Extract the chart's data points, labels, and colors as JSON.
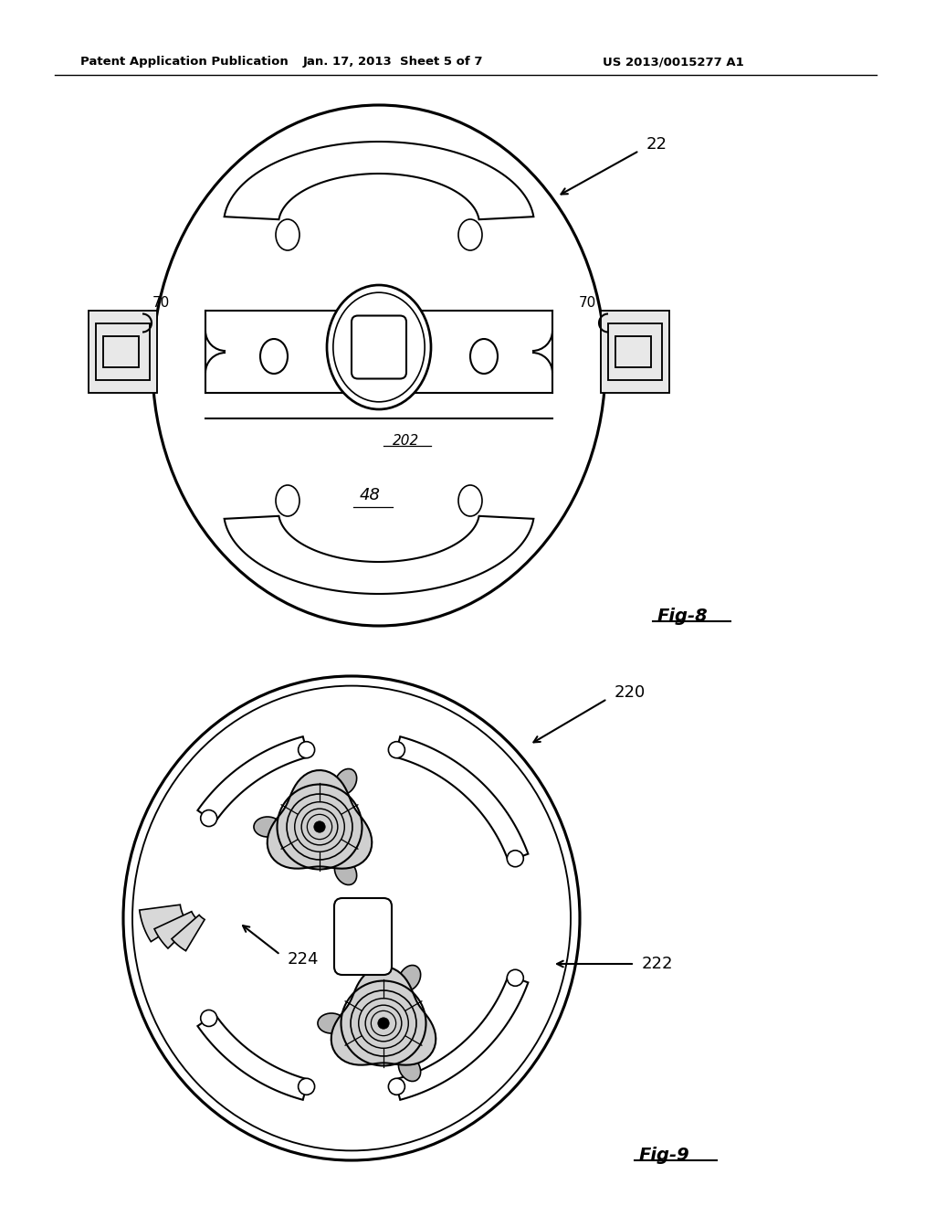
{
  "background_color": "#ffffff",
  "header_left": "Patent Application Publication",
  "header_mid": "Jan. 17, 2013  Sheet 5 of 7",
  "header_right": "US 2013/0015277 A1",
  "fig8_label": "Fig-8",
  "fig9_label": "Fig-9",
  "label_22": "22",
  "label_70a": "70",
  "label_70b": "70",
  "label_202": "202",
  "label_48": "48",
  "label_220": "220",
  "label_222": "222",
  "label_224": "224",
  "line_color": "#000000",
  "lw": 1.5
}
